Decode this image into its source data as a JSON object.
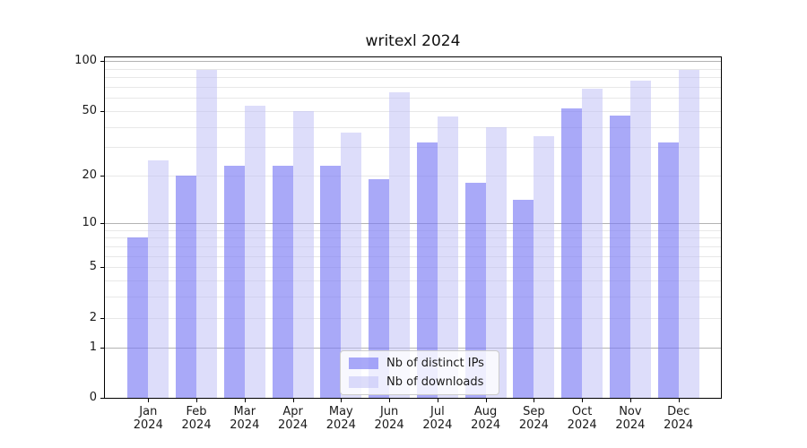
{
  "chart_data": {
    "type": "bar",
    "title": "writexl 2024",
    "categories": [
      "Jan 2024",
      "Feb 2024",
      "Mar 2024",
      "Apr 2024",
      "May 2024",
      "Jun 2024",
      "Jul 2024",
      "Aug 2024",
      "Sep 2024",
      "Oct 2024",
      "Nov 2024",
      "Dec 2024"
    ],
    "series": [
      {
        "name": "Nb of distinct IPs",
        "values": [
          8,
          20,
          23,
          23,
          23,
          19,
          32,
          18,
          14,
          52,
          47,
          32
        ]
      },
      {
        "name": "Nb of downloads",
        "values": [
          25,
          88,
          54,
          50,
          37,
          65,
          46,
          40,
          35,
          68,
          76,
          88
        ]
      }
    ],
    "xlabel": "",
    "ylabel": "",
    "yscale": "log(1+y)",
    "ylim": [
      0,
      105
    ],
    "ytick_labels": [
      "100",
      "50",
      "20",
      "10",
      "5",
      "2",
      "1",
      "0"
    ],
    "ytick_values": [
      100,
      50,
      20,
      10,
      5,
      2,
      1,
      0
    ],
    "major_gridlines": [
      1,
      10,
      100
    ],
    "minor_gridlines": [
      2,
      3,
      4,
      5,
      6,
      7,
      8,
      9,
      20,
      30,
      40,
      50,
      60,
      70,
      80,
      90
    ],
    "grid": true,
    "legend_position": "inside-bottom-center"
  },
  "legend": {
    "entry_ips": "Nb of distinct IPs",
    "entry_downloads": "Nb of downloads"
  },
  "colors": {
    "bar_distinct_ips": "rgba(123,123,244,0.65)",
    "bar_downloads": "rgba(187,187,245,0.50)",
    "bar_distinct_ips_on_white": "#a9a9f8",
    "bar_downloads_on_white": "#ddddf9",
    "major_grid": "#b3b3b3",
    "minor_grid": "#e8e8e8",
    "axis": "#000000",
    "text": "#1a1a1a"
  }
}
